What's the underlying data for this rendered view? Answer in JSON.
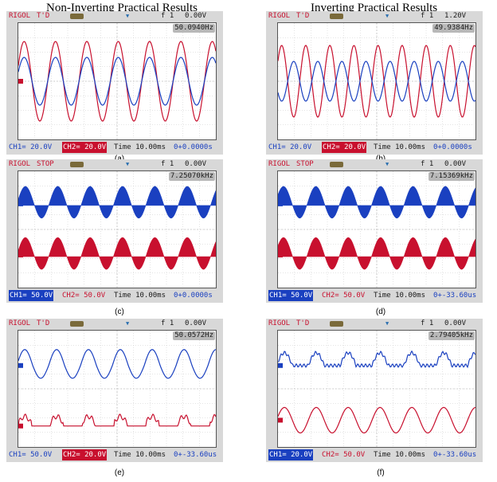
{
  "headings": {
    "left": "Non-Inverting Practical Results",
    "right": "Inverting Practical Results"
  },
  "colors": {
    "ch1": "#1a40c0",
    "ch2": "#c8102e",
    "screen": "#ffffff",
    "bezel": "#d8d8d8"
  },
  "panels": [
    {
      "id": "a",
      "caption": "(a)",
      "brand": "RIGOL",
      "state": "T'D",
      "trigger": "f 1",
      "trigger_level": "0.00V",
      "frequency": "50.0940Hz",
      "ch1": "CH1= 20.0V",
      "ch2": "CH2= 20.0V",
      "time": "Time 10.00ms",
      "offset": "0+0.0000s",
      "ch1_label_inverted": false,
      "ch2_label_inverted": true
    },
    {
      "id": "b",
      "caption": "(b)",
      "brand": "RIGOL",
      "state": "T'D",
      "trigger": "f 1",
      "trigger_level": "1.20V",
      "frequency": "49.9384Hz",
      "ch1": "CH1= 20.0V",
      "ch2": "CH2= 20.0V",
      "time": "Time 10.00ms",
      "offset": "0+0.0000s",
      "ch1_label_inverted": false,
      "ch2_label_inverted": true
    },
    {
      "id": "c",
      "caption": "(c)",
      "brand": "RIGOL",
      "state": "STOP",
      "trigger": "f 1",
      "trigger_level": "0.00V",
      "frequency": "7.25070kHz",
      "ch1": "CH1= 50.0V",
      "ch2": "CH2= 50.0V",
      "time": "Time 10.00ms",
      "offset": "0+0.0000s",
      "ch1_label_inverted": true,
      "ch2_label_inverted": false
    },
    {
      "id": "d",
      "caption": "(d)",
      "brand": "RIGOL",
      "state": "STOP",
      "trigger": "f 1",
      "trigger_level": "0.00V",
      "frequency": "7.15369kHz",
      "ch1": "CH1= 50.0V",
      "ch2": "CH2= 50.0V",
      "time": "Time 10.00ms",
      "offset": "0+-33.60us",
      "ch1_label_inverted": true,
      "ch2_label_inverted": false
    },
    {
      "id": "e",
      "caption": "(e)",
      "brand": "RIGOL",
      "state": "T'D",
      "trigger": "f 1",
      "trigger_level": "0.00V",
      "frequency": "50.0572Hz",
      "ch1": "CH1= 50.0V",
      "ch2": "CH2= 20.0V",
      "time": "Time 10.00ms",
      "offset": "0+-33.60us",
      "ch1_label_inverted": false,
      "ch2_label_inverted": true
    },
    {
      "id": "f",
      "caption": "(f)",
      "brand": "RIGOL",
      "state": "T'D",
      "trigger": "f 1",
      "trigger_level": "0.00V",
      "frequency": "2.79405kHz",
      "ch1": "CH1= 20.0V",
      "ch2": "CH2= 50.0V",
      "time": "Time 10.00ms",
      "offset": "0+-33.60us",
      "ch1_label_inverted": true,
      "ch2_label_inverted": false
    }
  ]
}
